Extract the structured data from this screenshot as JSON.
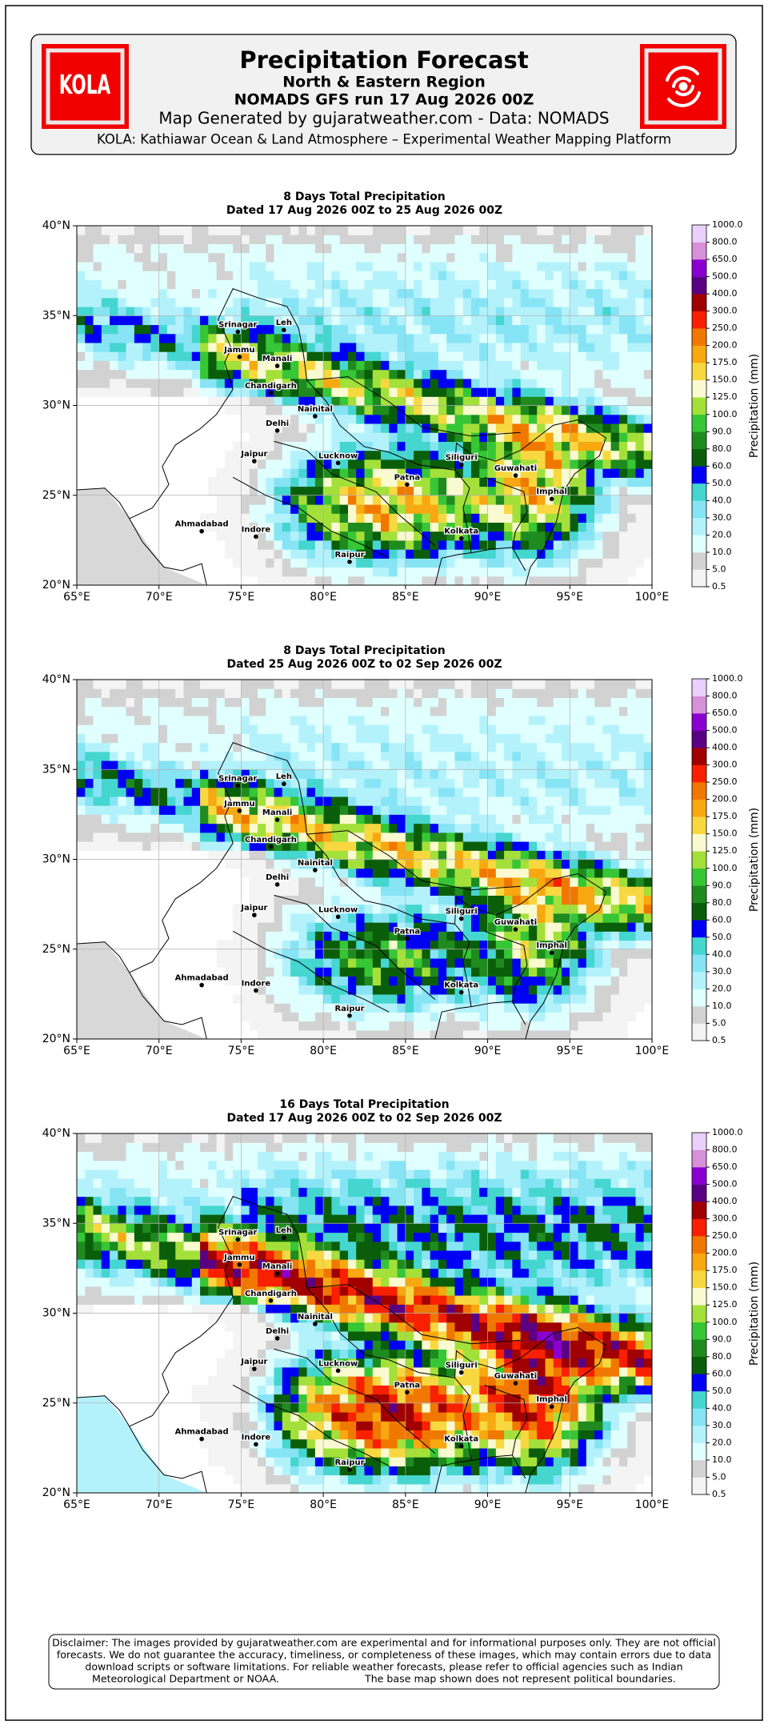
{
  "header": {
    "logo_text": "KOLA",
    "title": "Precipitation Forecast",
    "subtitle": "North & Eastern Region",
    "run": "NOMADS GFS run 17 Aug 2026 00Z",
    "source": "Map Generated by gujaratweather.com - Data: NOMADS",
    "tagline": "KOLA: Kathiawar Ocean & Land Atmosphere – Experimental Weather Mapping Platform"
  },
  "panels": [
    {
      "title": "8 Days Total Precipitation",
      "dates": "Dated 17 Aug 2026 00Z to 25 Aug 2026 00Z"
    },
    {
      "title": "8 Days Total Precipitation",
      "dates": "Dated 25 Aug 2026 00Z to 02 Sep 2026 00Z"
    },
    {
      "title": "16 Days Total Precipitation",
      "dates": "Dated 17 Aug 2026 00Z to 02 Sep 2026 00Z"
    }
  ],
  "map": {
    "xticks": [
      "65°E",
      "70°E",
      "75°E",
      "80°E",
      "85°E",
      "90°E",
      "95°E",
      "100°E"
    ],
    "yticks": [
      "20°N",
      "25°N",
      "30°N",
      "35°N",
      "40°N"
    ],
    "cities": [
      "Srinagar",
      "Leh",
      "Jammu",
      "Manali",
      "Chandigarh",
      "Nainital",
      "Delhi",
      "Jaipur",
      "Lucknow",
      "Patna",
      "Siliguri",
      "Guwahati",
      "Imphal",
      "Kolkata",
      "Ahmadabad",
      "Indore",
      "Raipur"
    ]
  },
  "colorbar": {
    "label": "Precipitation (mm)",
    "levels": [
      "0.5",
      "5.0",
      "10.0",
      "20.0",
      "30.0",
      "40.0",
      "50.0",
      "60.0",
      "80.0",
      "90.0",
      "100.0",
      "125.0",
      "150.0",
      "175.0",
      "200.0",
      "250.0",
      "300.0",
      "400.0",
      "500.0",
      "650.0",
      "800.0",
      "1000.0"
    ]
  },
  "disclaimer": {
    "lines": [
      "Disclaimer: The images provided by gujaratweather.com are experimental and for informational purposes only. They are not official",
      "forecasts. We do not guarantee the accuracy, timeliness, or completeness of these images, which may contain errors due to data",
      "download scripts or software limitations. For reliable weather forecasts, please refer to official agencies such as Indian",
      "Meteorological Department or NOAA."
    ],
    "note": "The base map shown does not represent political boundaries."
  }
}
